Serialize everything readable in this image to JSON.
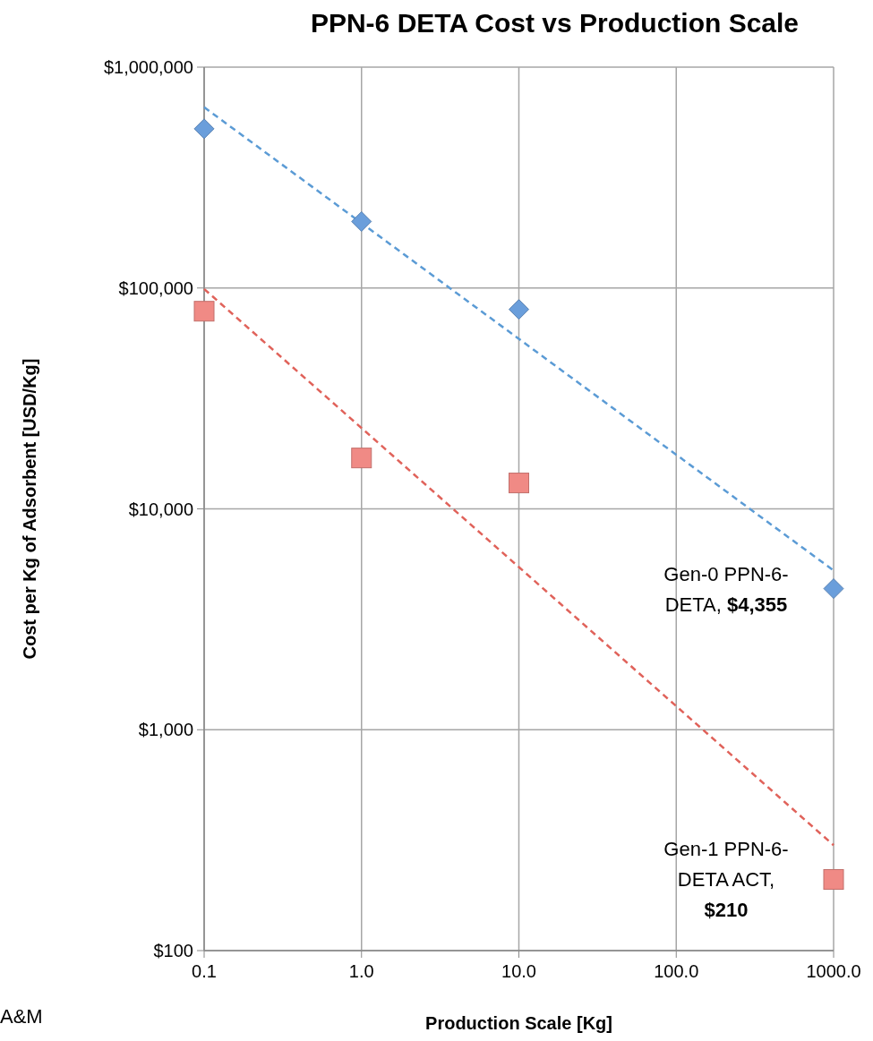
{
  "chart_data": {
    "type": "scatter",
    "title": "PPN-6 DETA Cost vs Production Scale",
    "xlabel": "Production Scale [Kg]",
    "ylabel": "Cost per Kg of Adsorbent [USD/Kg]",
    "log": "xy",
    "grid": true,
    "xlim": [
      0.1,
      1000
    ],
    "xticks": [
      {
        "value": 0.1,
        "label": "0.1"
      },
      {
        "value": 1,
        "label": "1.0"
      },
      {
        "value": 10,
        "label": "10.0"
      },
      {
        "value": 100,
        "label": "100.0"
      },
      {
        "value": 1000,
        "label": "1000.0"
      }
    ],
    "ylim": [
      100,
      1000000
    ],
    "yticks": [
      {
        "value": 100,
        "label": "$100"
      },
      {
        "value": 1000,
        "label": "$1,000"
      },
      {
        "value": 10000,
        "label": "$10,000"
      },
      {
        "value": 100000,
        "label": "$100,000"
      },
      {
        "value": 1000000,
        "label": "$1,000,000"
      }
    ],
    "series": [
      {
        "color": "#6a9edb",
        "marker": "diamond",
        "x": [
          0.1,
          1,
          10,
          1000
        ],
        "values": [
          526000,
          200000,
          80000,
          4355
        ]
      },
      {
        "color": "#f08a85",
        "marker": "square",
        "x": [
          0.1,
          1,
          10,
          1000
        ],
        "values": [
          78500,
          17000,
          13100,
          210
        ]
      },
      {
        "type": "line",
        "color": "#5b9bd5",
        "line_style": "dashed",
        "marker": "none",
        "x": [
          0.1,
          1000
        ],
        "values": [
          658000,
          5260
        ]
      },
      {
        "type": "line",
        "color": "#e0625a",
        "line_style": "dashed",
        "marker": "none",
        "x": [
          0.1,
          1000
        ],
        "values": [
          99000,
          300
        ]
      }
    ],
    "annotations": [
      {
        "text": "Gen-0 PPN-6-DETA, $4,355",
        "x": 1000,
        "y": 4355
      },
      {
        "text": "Gen-1 PPN-6-DETA ACT, $210",
        "x": 1000,
        "y": 210
      },
      "A&M"
    ]
  }
}
